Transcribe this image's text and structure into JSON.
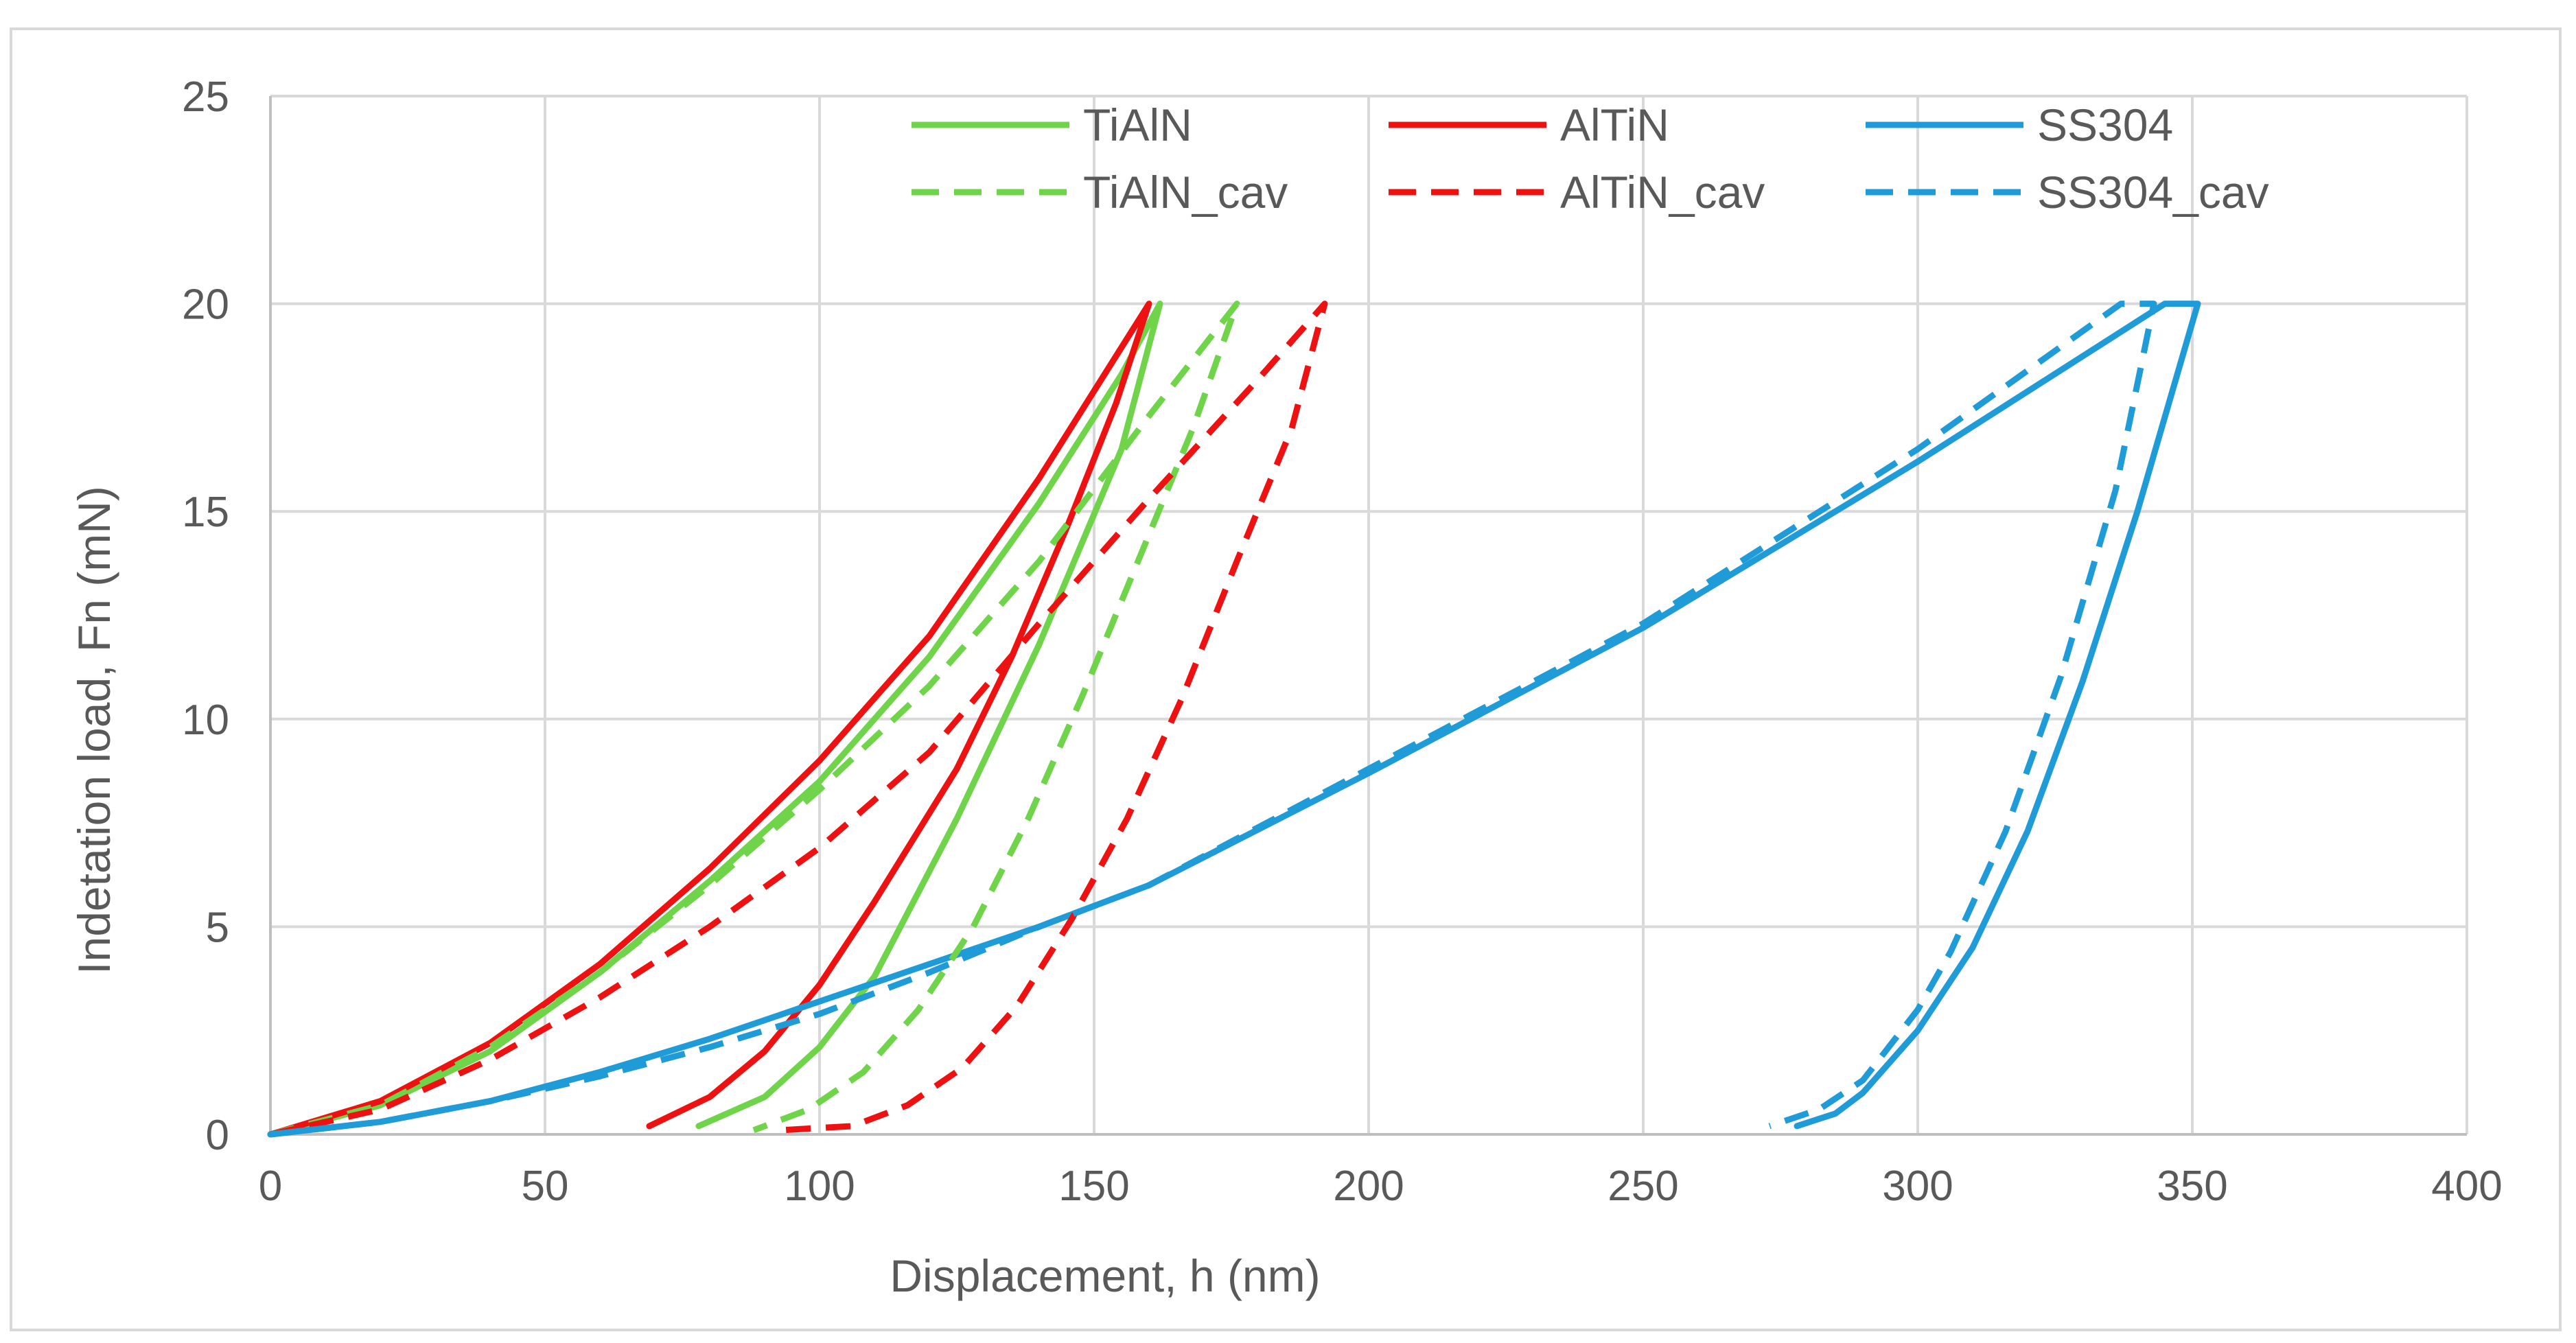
{
  "chart_data": {
    "type": "line",
    "title": "",
    "xlabel": "Displacement, h (nm)",
    "ylabel": "Indetation load, Fn (mN)",
    "xlim": [
      0,
      400
    ],
    "ylim": [
      0,
      25
    ],
    "xticks": [
      0,
      50,
      100,
      150,
      200,
      250,
      300,
      350,
      400
    ],
    "yticks": [
      0,
      5,
      10,
      15,
      20,
      25
    ],
    "grid": true,
    "legend": "top",
    "series": [
      {
        "name": "TiAlN",
        "color": "#70d44b",
        "dash": "solid",
        "x": [
          0,
          20,
          40,
          60,
          80,
          100,
          120,
          140,
          155,
          162,
          155,
          140,
          125,
          110,
          100,
          90,
          78
        ],
        "y": [
          0,
          0.7,
          2.0,
          3.9,
          6.1,
          8.5,
          11.5,
          15.2,
          18.3,
          20,
          16.5,
          11.8,
          7.6,
          3.8,
          2.1,
          0.9,
          0.2
        ]
      },
      {
        "name": "AlTiN",
        "color": "#ee1111",
        "dash": "solid",
        "x": [
          0,
          20,
          40,
          60,
          80,
          100,
          120,
          140,
          160,
          154,
          145,
          135,
          125,
          110,
          100,
          90,
          80,
          69
        ],
        "y": [
          0,
          0.8,
          2.2,
          4.1,
          6.4,
          9.0,
          12.0,
          15.8,
          20,
          17.6,
          14.6,
          11.5,
          8.8,
          5.6,
          3.6,
          2.0,
          0.9,
          0.2
        ]
      },
      {
        "name": "SS304",
        "color": "#1f9bd7",
        "dash": "solid",
        "x": [
          0,
          20,
          40,
          60,
          80,
          100,
          120,
          140,
          160,
          200,
          250,
          300,
          345,
          351,
          340,
          330,
          320,
          310,
          300,
          290,
          285,
          278
        ],
        "y": [
          0,
          0.3,
          0.8,
          1.5,
          2.3,
          3.2,
          4.1,
          5.0,
          6.0,
          8.7,
          12.2,
          16.2,
          20,
          20,
          15.0,
          10.9,
          7.3,
          4.5,
          2.5,
          1.0,
          0.5,
          0.2
        ]
      },
      {
        "name": "TiAlN_cav",
        "color": "#70d44b",
        "dash": "dashed",
        "x": [
          0,
          20,
          40,
          60,
          80,
          100,
          120,
          140,
          160,
          176,
          168,
          158,
          148,
          138,
          128,
          118,
          108,
          98,
          88
        ],
        "y": [
          0,
          0.7,
          2.1,
          3.9,
          6.0,
          8.3,
          10.8,
          13.8,
          17.3,
          20,
          17.0,
          13.8,
          10.6,
          7.6,
          5.0,
          3.0,
          1.5,
          0.6,
          0.1
        ]
      },
      {
        "name": "AlTiN_cav",
        "color": "#ee1111",
        "dash": "dashed",
        "x": [
          0,
          20,
          40,
          60,
          80,
          100,
          120,
          140,
          160,
          180,
          192,
          186,
          176,
          166,
          156,
          146,
          136,
          126,
          116,
          106,
          93
        ],
        "y": [
          0,
          0.6,
          1.8,
          3.3,
          5.0,
          6.9,
          9.2,
          12.3,
          15.3,
          18.2,
          20,
          17.0,
          13.8,
          10.5,
          7.6,
          5.2,
          3.1,
          1.6,
          0.7,
          0.2,
          0.1
        ]
      },
      {
        "name": "SS304_cav",
        "color": "#1f9bd7",
        "dash": "dashed",
        "x": [
          0,
          20,
          40,
          60,
          80,
          100,
          120,
          140,
          160,
          200,
          250,
          300,
          337,
          343,
          336,
          326,
          316,
          306,
          300,
          290,
          282,
          273
        ],
        "y": [
          0,
          0.3,
          0.8,
          1.4,
          2.1,
          2.9,
          3.9,
          5.0,
          6.0,
          8.8,
          12.3,
          16.5,
          20,
          20,
          15.5,
          11.0,
          7.3,
          4.4,
          3.0,
          1.3,
          0.6,
          0.2
        ]
      }
    ]
  }
}
